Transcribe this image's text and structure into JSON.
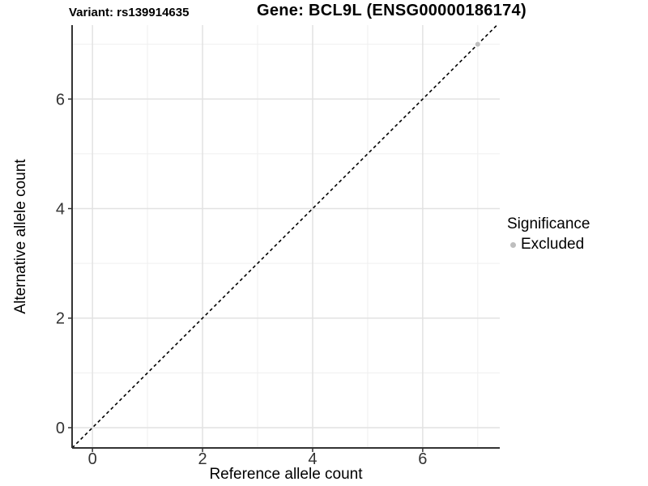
{
  "chart_data": {
    "type": "scatter",
    "titles": {
      "left": "Variant: rs139914635",
      "right": "Gene: BCL9L (ENSG00000186174)"
    },
    "xlabel": "Reference allele count",
    "ylabel": "Alternative allele count",
    "xlim": [
      -0.37,
      7.4
    ],
    "ylim": [
      -0.37,
      7.35
    ],
    "x_major_ticks": [
      0,
      2,
      4,
      6
    ],
    "y_major_ticks": [
      0,
      2,
      4,
      6
    ],
    "x_minor_gridlines": [
      1,
      3,
      5,
      7
    ],
    "y_minor_gridlines": [
      1,
      3,
      5,
      7
    ],
    "grid": "major+minor",
    "identity_line": {
      "slope": 1,
      "intercept": 0,
      "style": "dashed",
      "color": "#000000"
    },
    "series": [
      {
        "name": "Excluded",
        "color": "#bebebe",
        "points": [
          {
            "x": 7,
            "y": 7
          }
        ]
      }
    ],
    "legend": {
      "position": "right",
      "title": "Significance",
      "items": [
        {
          "label": "Excluded",
          "color": "#bebebe"
        }
      ]
    },
    "colors": {
      "axis_line": "#333333",
      "tick_label": "#333333",
      "grid_major": "#e2e2e2",
      "grid_minor": "#efefef",
      "panel_background": "#ffffff"
    }
  }
}
